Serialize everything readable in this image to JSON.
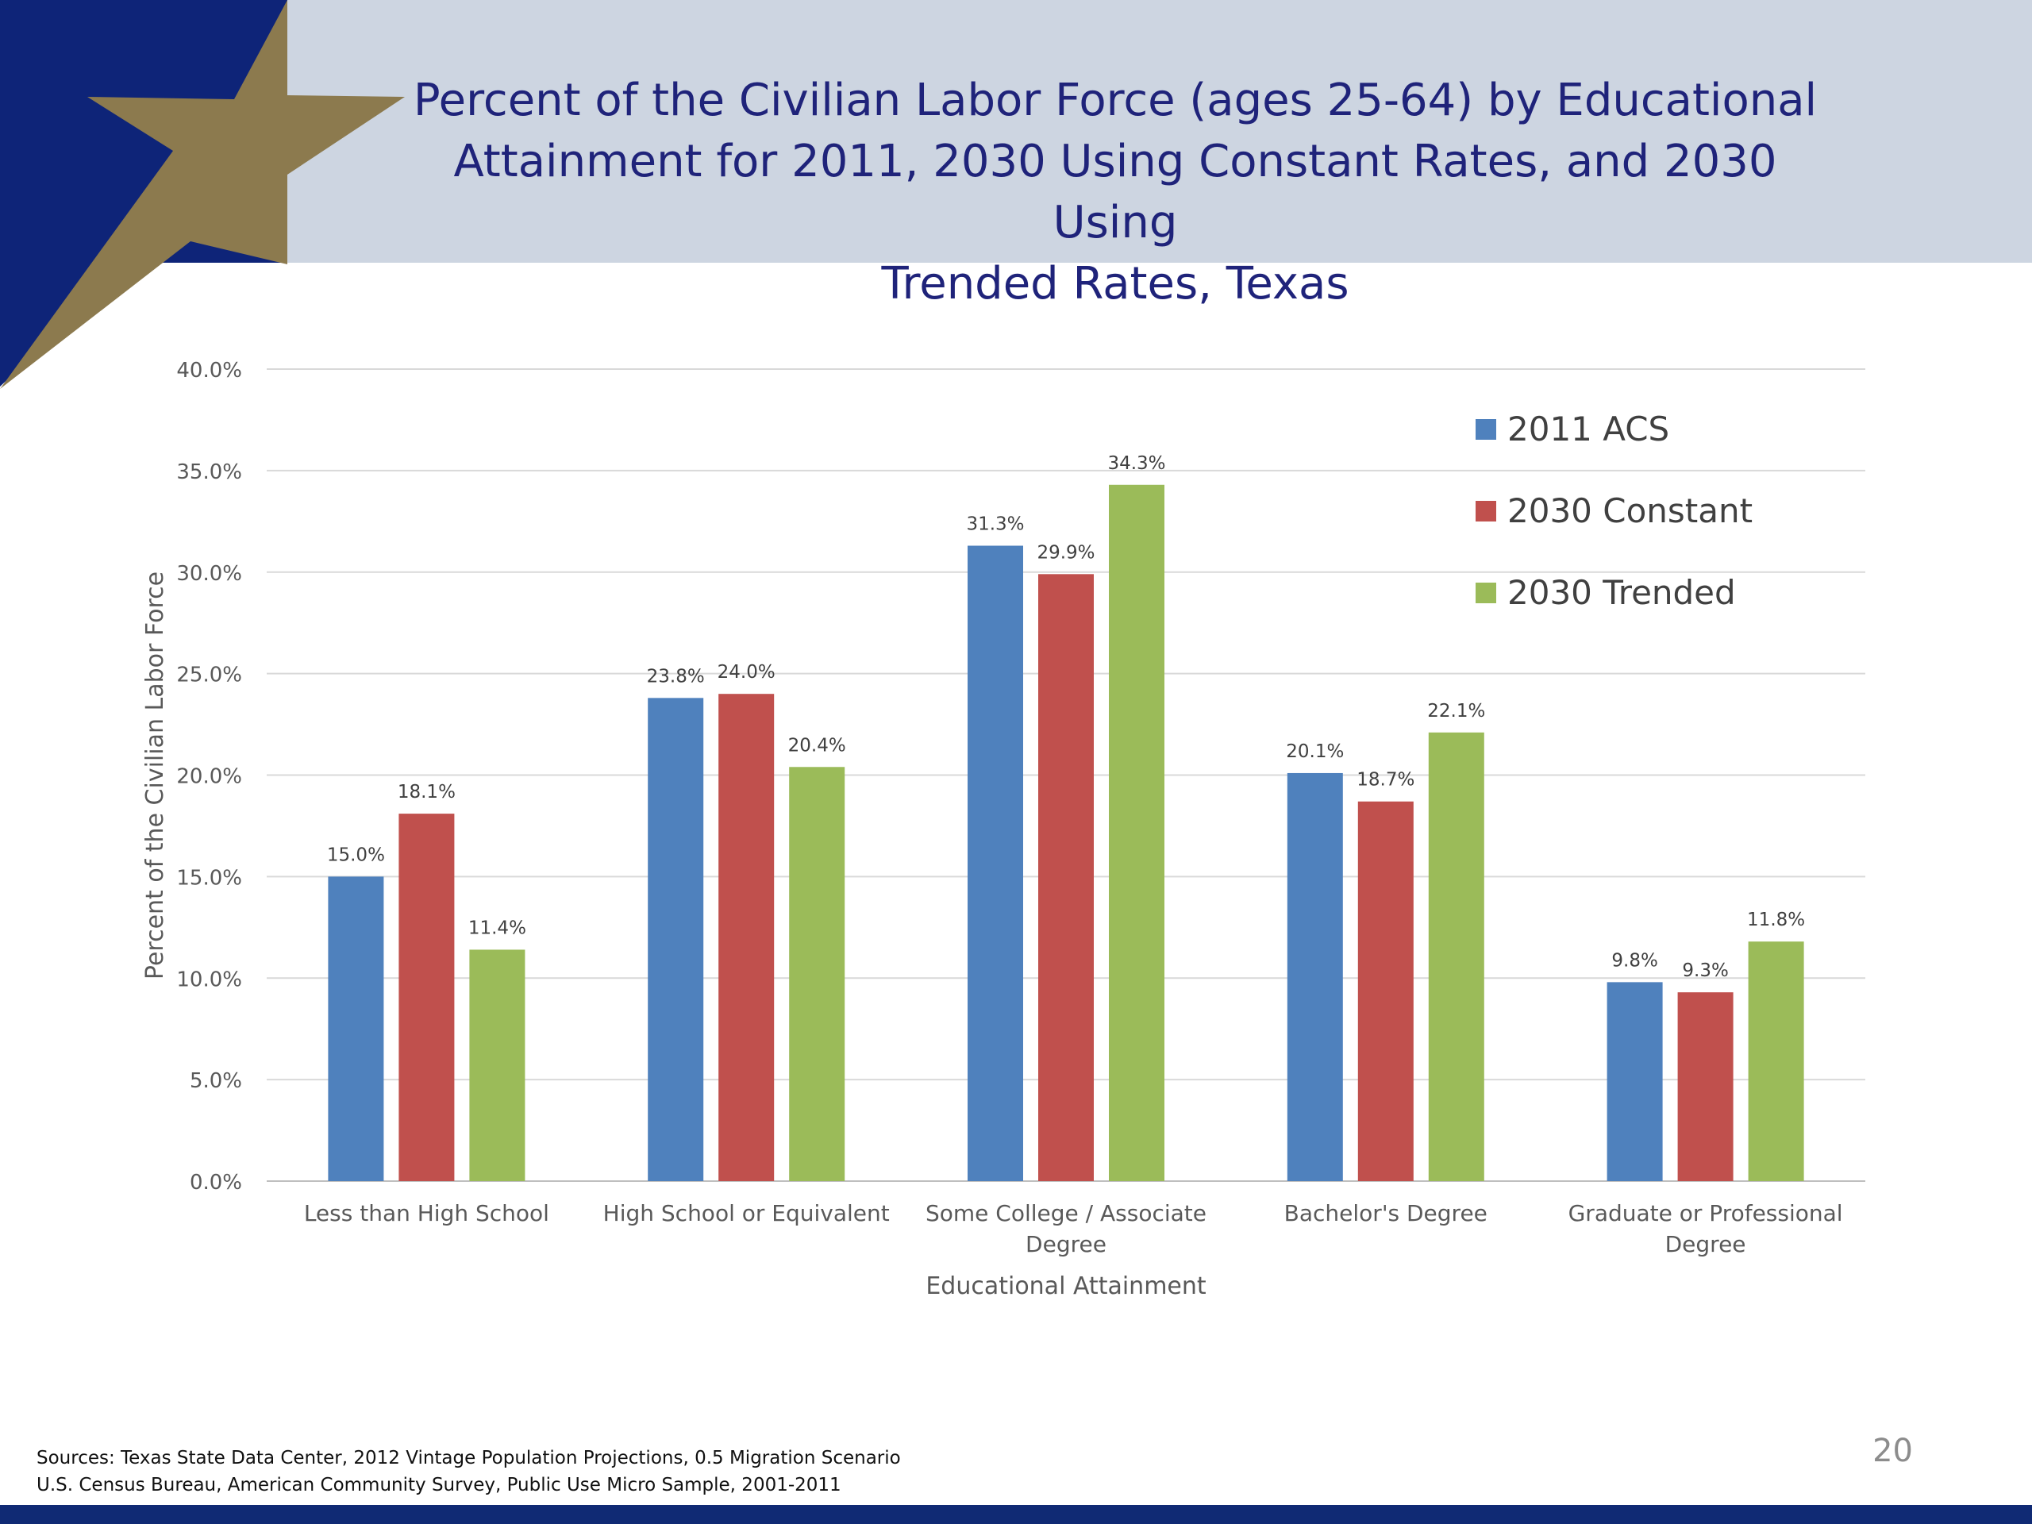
{
  "slide": {
    "title_lines": [
      "Percent of the Civilian Labor Force (ages 25-64) by Educational",
      "Attainment for 2011, 2030 Using Constant Rates, and 2030 Using",
      "Trended Rates, Texas"
    ],
    "sources_lines": [
      "Sources: Texas State Data Center, 2012 Vintage Population Projections, 0.5 Migration Scenario",
      "U.S. Census Bureau, American Community Survey, Public Use Micro Sample, 2001-2011"
    ],
    "page_number": "20",
    "colors": {
      "header_band": "#cdd5e1",
      "navy": "#0e2478",
      "gold_star": "#8c7a4e",
      "title_text": "#1f237a",
      "bottom_bar": "#102a74"
    }
  },
  "chart_data": {
    "type": "bar",
    "title": "Percent of the Civilian Labor Force (ages 25-64) by Educational Attainment for 2011, 2030 Using Constant Rates, and 2030 Using Trended Rates, Texas",
    "xlabel": "Educational Attainment",
    "ylabel": "Percent of the Civilian Labor Force",
    "categories": [
      [
        "Less than High School"
      ],
      [
        "High School or Equivalent"
      ],
      [
        "Some College / Associate",
        "Degree"
      ],
      [
        "Bachelor's Degree"
      ],
      [
        "Graduate or Professional",
        "Degree"
      ]
    ],
    "series": [
      {
        "name": "2011 ACS",
        "color": "#4f81bd",
        "values": [
          15.0,
          23.8,
          31.3,
          20.1,
          9.8
        ],
        "labels": [
          "15.0%",
          "23.8%",
          "31.3%",
          "20.1%",
          "9.8%"
        ]
      },
      {
        "name": "2030 Constant",
        "color": "#c0504d",
        "values": [
          18.1,
          24.0,
          29.9,
          18.7,
          9.3
        ],
        "labels": [
          "18.1%",
          "24.0%",
          "29.9%",
          "18.7%",
          "9.3%"
        ]
      },
      {
        "name": "2030 Trended",
        "color": "#9bbb59",
        "values": [
          11.4,
          20.4,
          34.3,
          22.1,
          11.8
        ],
        "labels": [
          "11.4%",
          "20.4%",
          "34.3%",
          "22.1%",
          "11.8%"
        ]
      }
    ],
    "ylim": [
      0,
      40
    ],
    "yticks": [
      "0.0%",
      "5.0%",
      "10.0%",
      "15.0%",
      "20.0%",
      "25.0%",
      "30.0%",
      "35.0%",
      "40.0%"
    ],
    "grid": true,
    "legend_position": "top-right"
  }
}
